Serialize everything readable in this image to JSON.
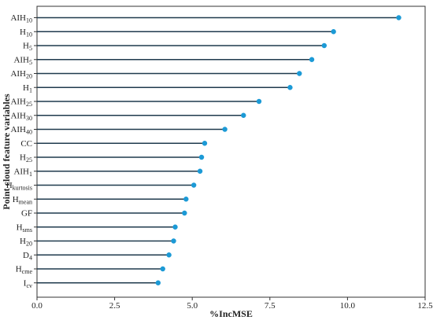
{
  "chart_data": {
    "type": "lollipop",
    "xlabel": "%IncMSE",
    "ylabel": "Point cloud feature variables",
    "xlim": [
      0,
      12.5
    ],
    "xticks": [
      "0.0",
      "2.5",
      "5.0",
      "7.5",
      "10.0",
      "12.5"
    ],
    "grid": false,
    "legend": "none",
    "colors": {
      "stem": "#1f3a4d",
      "point": "#1c9ad6",
      "axis": "#333333"
    },
    "categories": [
      {
        "base": "AIH",
        "sub": "10"
      },
      {
        "base": "H",
        "sub": "10"
      },
      {
        "base": "H",
        "sub": "5"
      },
      {
        "base": "AIH",
        "sub": "5"
      },
      {
        "base": "AIH",
        "sub": "20"
      },
      {
        "base": "H",
        "sub": "1"
      },
      {
        "base": "AIH",
        "sub": "25"
      },
      {
        "base": "AIH",
        "sub": "30"
      },
      {
        "base": "AIH",
        "sub": "40"
      },
      {
        "base": "CC",
        "sub": ""
      },
      {
        "base": "H",
        "sub": "25"
      },
      {
        "base": "AIH",
        "sub": "1"
      },
      {
        "base": "H",
        "sub": "kurtosis"
      },
      {
        "base": "H",
        "sub": "mean"
      },
      {
        "base": "GF",
        "sub": ""
      },
      {
        "base": "H",
        "sub": "sms"
      },
      {
        "base": "H",
        "sub": "20"
      },
      {
        "base": "D",
        "sub": "4"
      },
      {
        "base": "H",
        "sub": "cme"
      },
      {
        "base": "I",
        "sub": "cv"
      }
    ],
    "values": [
      11.65,
      9.55,
      9.25,
      8.85,
      8.45,
      8.15,
      7.15,
      6.65,
      6.05,
      5.4,
      5.3,
      5.25,
      5.05,
      4.8,
      4.75,
      4.45,
      4.4,
      4.25,
      4.05,
      3.9
    ]
  }
}
